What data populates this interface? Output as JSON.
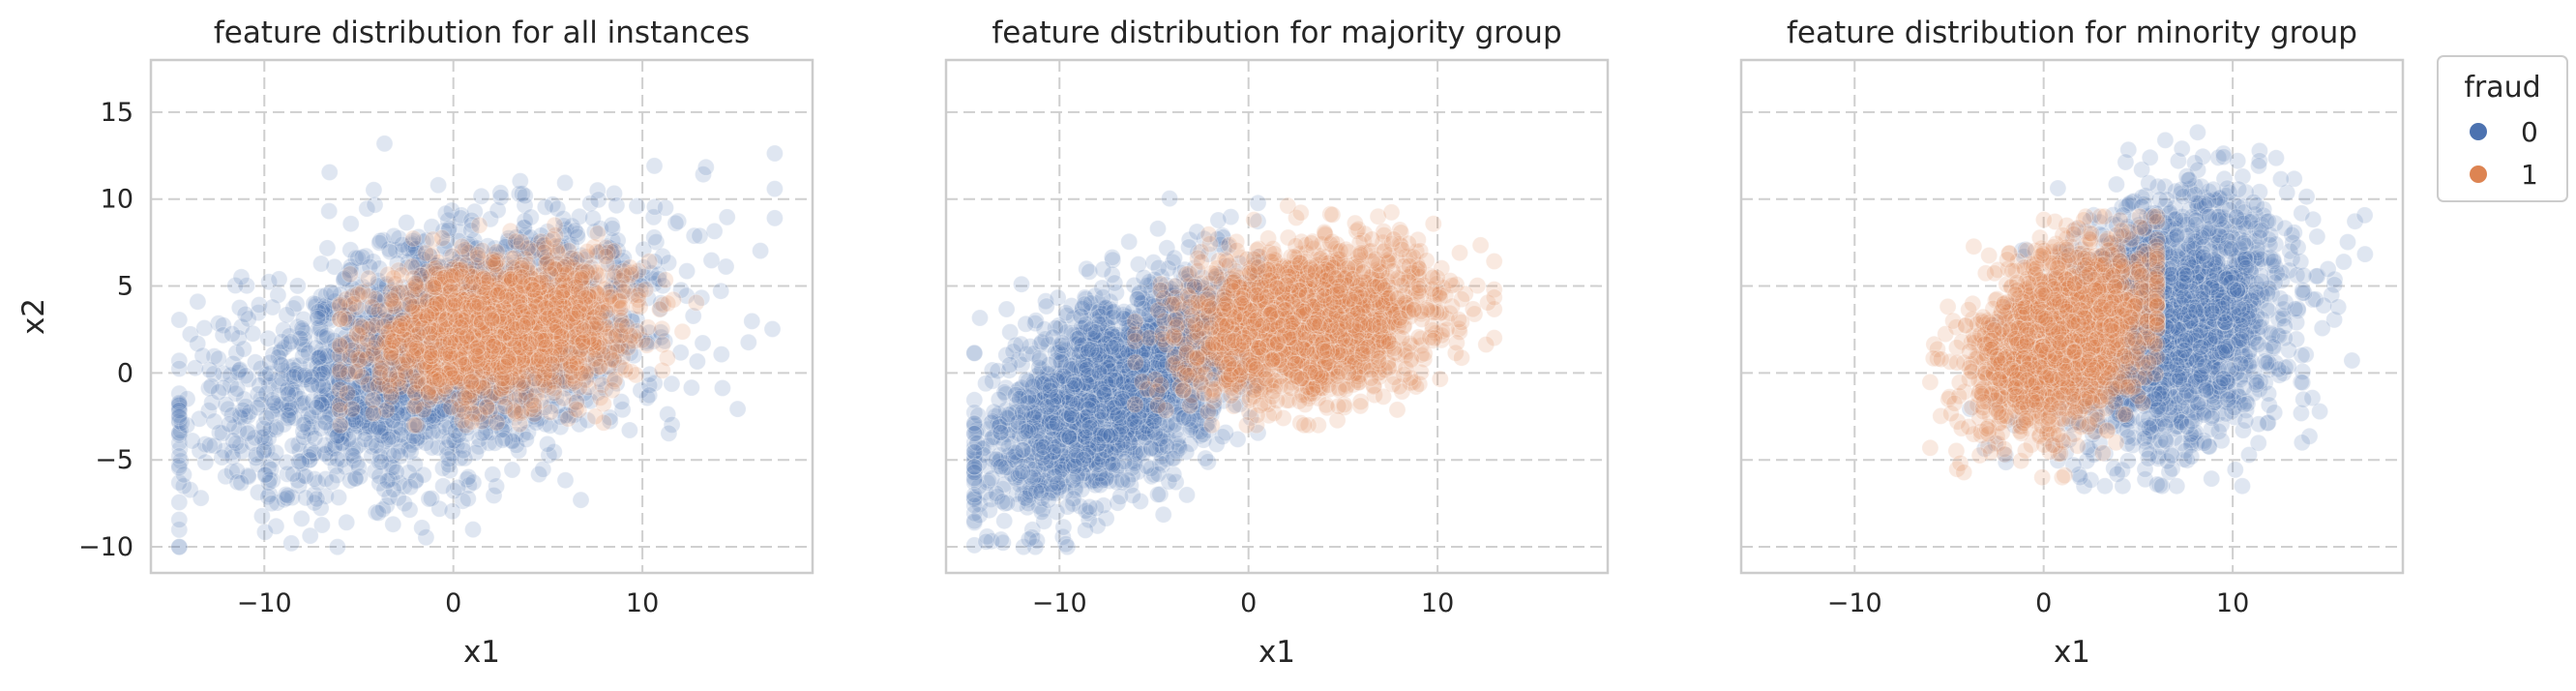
{
  "chart_data": {
    "type": "scatter",
    "xlim": [
      -16,
      19
    ],
    "ylim": [
      -11.5,
      18
    ],
    "x_ticks": [
      -10,
      0,
      10
    ],
    "y_ticks": [
      -10,
      -5,
      0,
      5,
      10,
      15
    ],
    "grid": true,
    "grid_style": "dashed",
    "sharey": true,
    "point_alpha": 0.18,
    "legend": {
      "title": "fraud",
      "placement": "outside-top-right",
      "entries": [
        {
          "label": "0",
          "color": "#4c72b0"
        },
        {
          "label": "1",
          "color": "#dd8452"
        }
      ]
    },
    "panels": [
      {
        "title": "feature distribution for all instances",
        "xlabel": "x1",
        "ylabel": "x2",
        "series": [
          {
            "label": "0",
            "color": "#4c72b0",
            "center": [
              -1.0,
              1.0
            ],
            "spread": [
              5.8,
              3.9
            ],
            "correlation": 0.45,
            "x_range": [
              -14.5,
              17.0
            ],
            "y_range": [
              -10.0,
              17.0
            ]
          },
          {
            "label": "1",
            "color": "#dd8452",
            "center": [
              2.5,
              2.5
            ],
            "spread": [
              3.2,
              2.0
            ],
            "correlation": 0.2,
            "x_range": [
              -6.0,
              13.0
            ],
            "y_range": [
              -3.0,
              8.5
            ]
          }
        ]
      },
      {
        "title": "feature distribution for majority group",
        "xlabel": "x1",
        "ylabel": "",
        "series": [
          {
            "label": "0",
            "color": "#4c72b0",
            "center": [
              -7.0,
              -1.0
            ],
            "spread": [
              3.4,
              3.2
            ],
            "correlation": 0.55,
            "x_range": [
              -14.5,
              0.5
            ],
            "y_range": [
              -10.0,
              10.5
            ]
          },
          {
            "label": "1",
            "color": "#dd8452",
            "center": [
              3.0,
              3.0
            ],
            "spread": [
              3.2,
              2.1
            ],
            "correlation": 0.2,
            "x_range": [
              -6.0,
              13.0
            ],
            "y_range": [
              -3.0,
              10.0
            ]
          }
        ]
      },
      {
        "title": "feature distribution for minority group",
        "xlabel": "x1",
        "ylabel": "",
        "series": [
          {
            "label": "0",
            "color": "#4c72b0",
            "center": [
              7.0,
              3.0
            ],
            "spread": [
              3.0,
              3.6
            ],
            "correlation": 0.2,
            "x_range": [
              -4.0,
              17.0
            ],
            "y_range": [
              -6.5,
              16.0
            ]
          },
          {
            "label": "1",
            "color": "#dd8452",
            "center": [
              1.0,
              2.0
            ],
            "spread": [
              2.3,
              2.5
            ],
            "correlation": 0.35,
            "x_range": [
              -6.0,
              6.0
            ],
            "y_range": [
              -6.0,
              9.0
            ]
          }
        ]
      }
    ]
  }
}
